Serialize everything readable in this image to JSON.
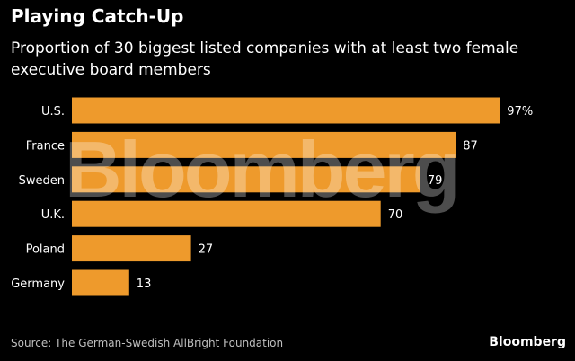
{
  "title": "Playing Catch-Up",
  "subtitle": "Proportion of 30 biggest listed companies with at least two female executive board members",
  "source": "Source: The German-Swedish AllBright Foundation",
  "brand": "Bloomberg",
  "watermark": "Bloomberg",
  "colors": {
    "background": "#000000",
    "bar": "#ee9a2c",
    "text": "#ffffff"
  },
  "chart_data": {
    "type": "bar",
    "orientation": "horizontal",
    "categories": [
      "U.S.",
      "France",
      "Sweden",
      "U.K.",
      "Poland",
      "Germany"
    ],
    "values": [
      97,
      87,
      79,
      70,
      27,
      13
    ],
    "value_labels": [
      "97%",
      "87",
      "79",
      "70",
      "27",
      "13"
    ],
    "title": "Playing Catch-Up",
    "subtitle": "Proportion of 30 biggest listed companies with at least two female executive board members",
    "xlim": [
      0,
      100
    ],
    "grid": false
  }
}
